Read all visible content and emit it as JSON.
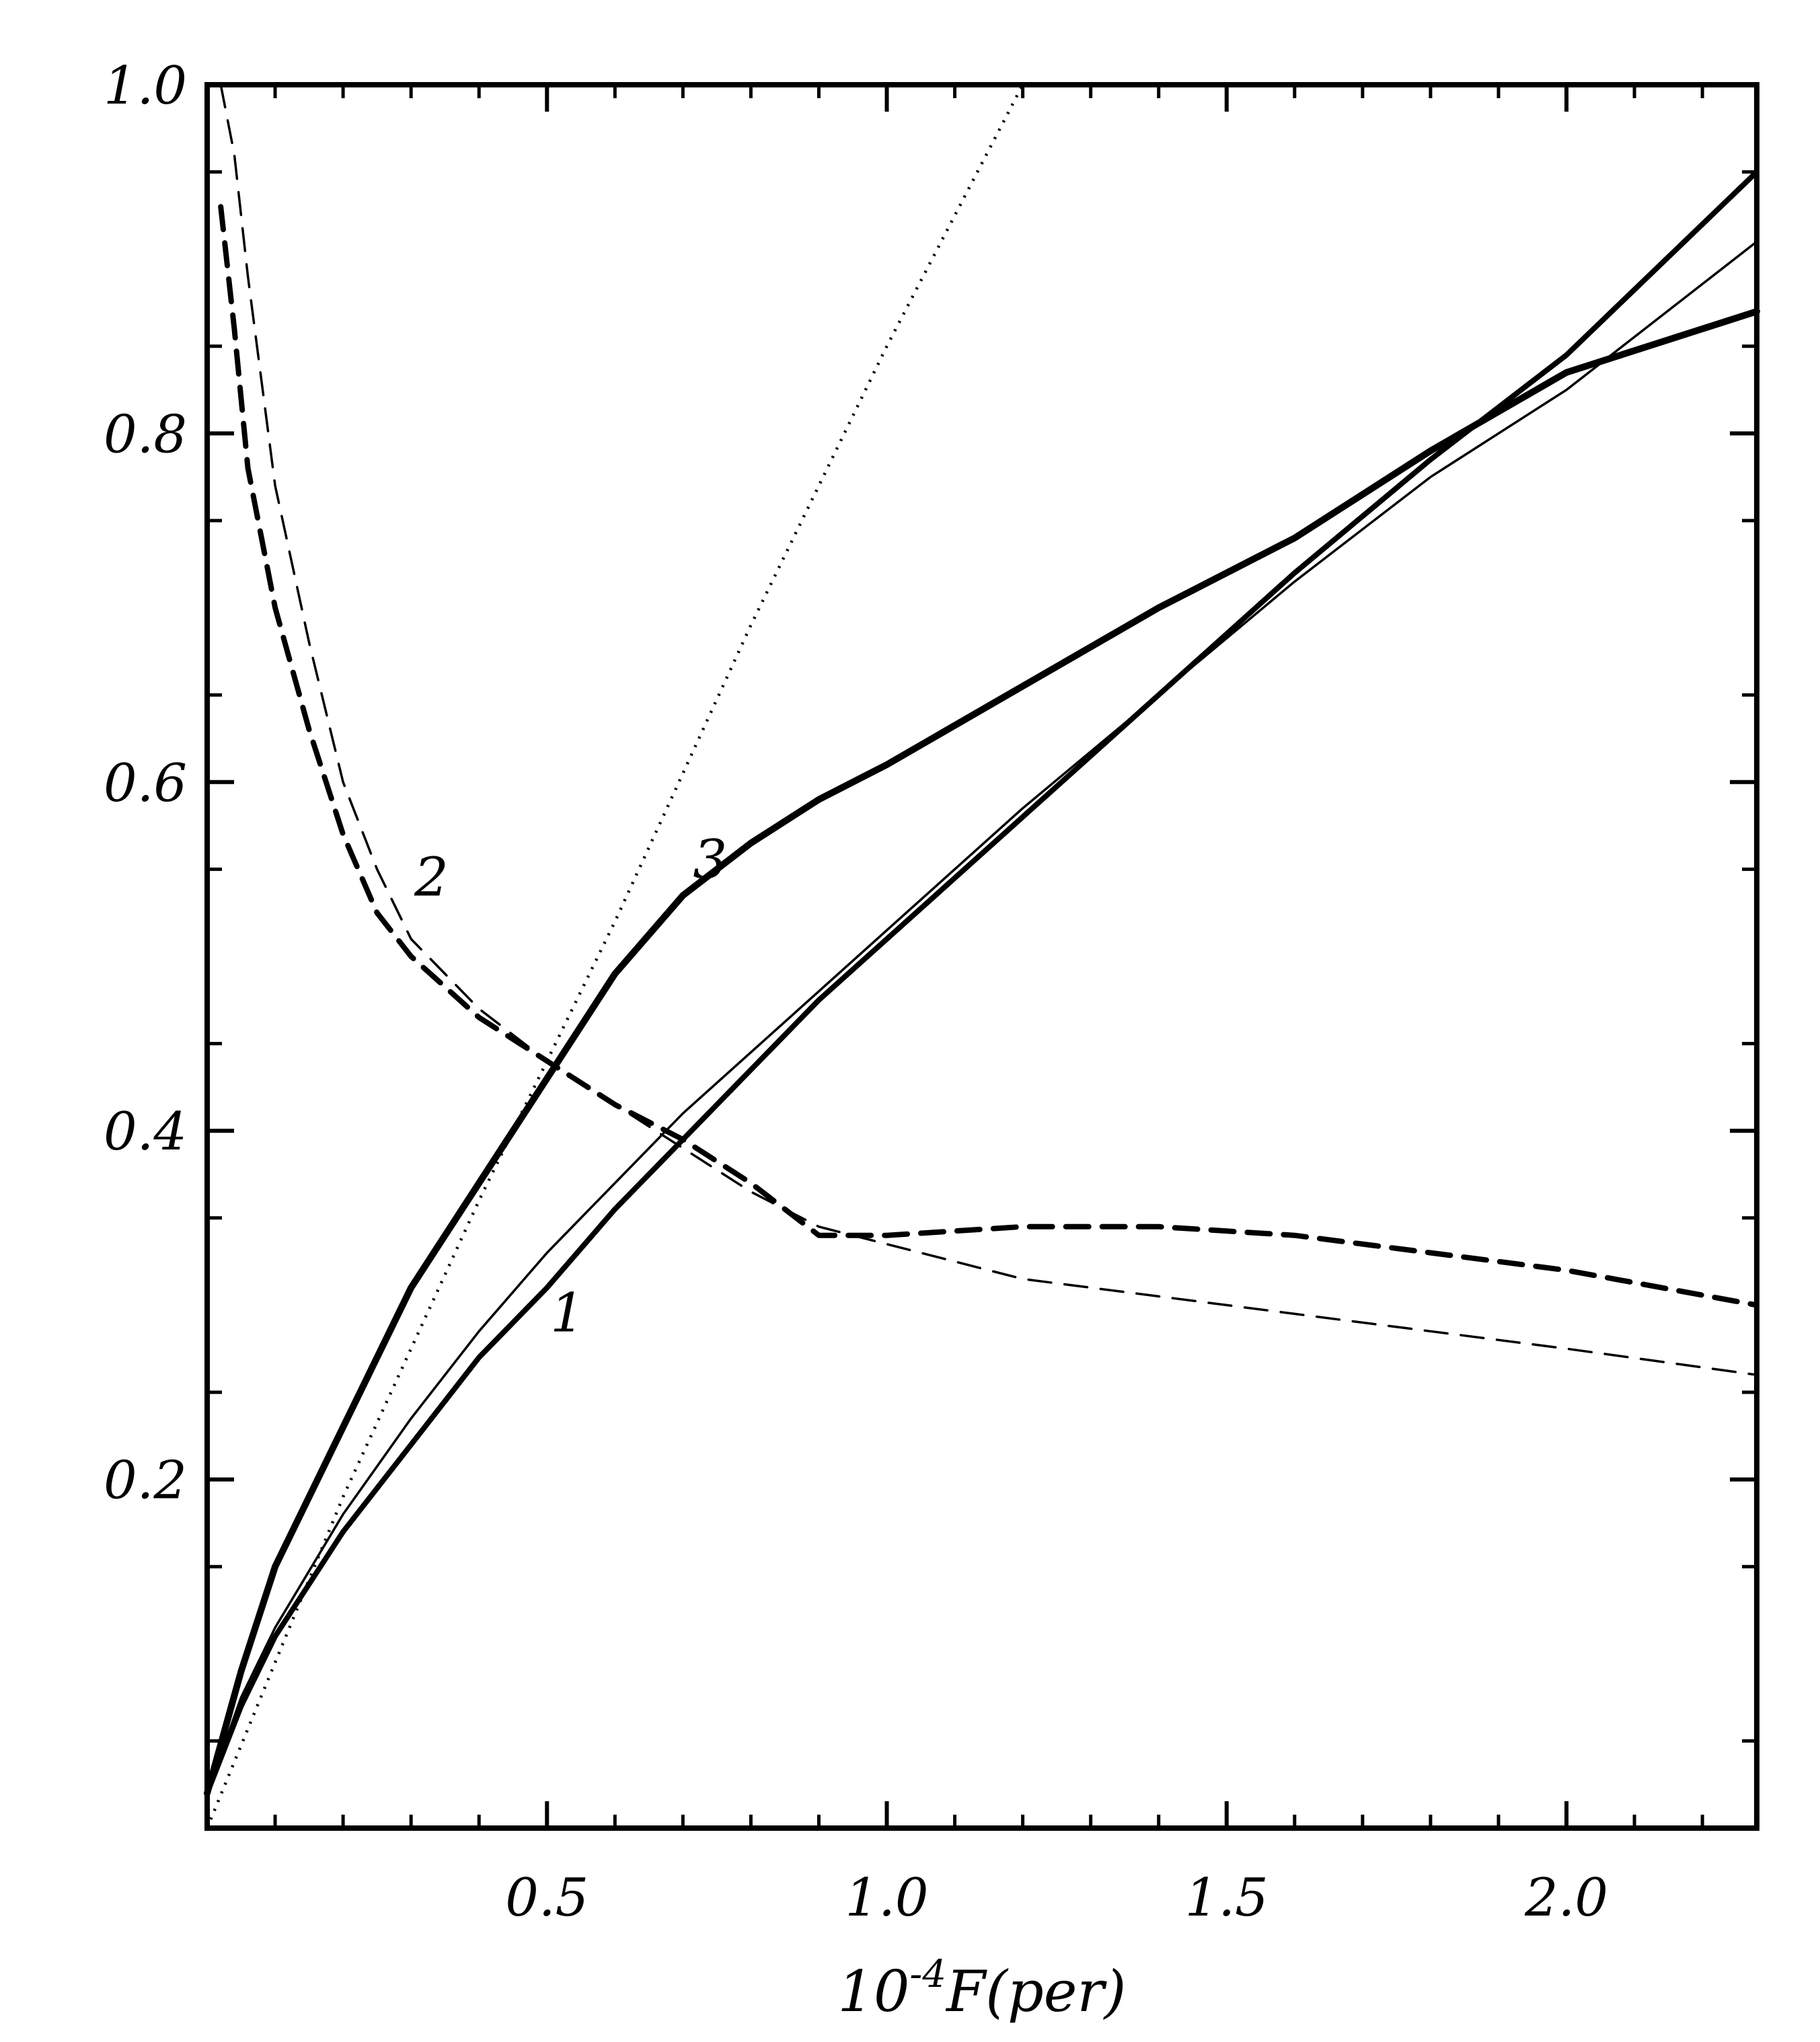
{
  "chart_data": {
    "type": "line",
    "xlabel": "10",
    "xlabel_exponent": "-4",
    "xlabel_suffix": "F(per)",
    "ylabel": "",
    "xlim": [
      0,
      2.28
    ],
    "ylim": [
      0,
      1.0
    ],
    "x_ticks": [
      {
        "value": 0.5,
        "label": "0.5"
      },
      {
        "value": 1.0,
        "label": "1.0"
      },
      {
        "value": 1.5,
        "label": "1.5"
      },
      {
        "value": 2.0,
        "label": "2.0"
      }
    ],
    "y_ticks": [
      {
        "value": 0.2,
        "label": "0.2"
      },
      {
        "value": 0.4,
        "label": "0.4"
      },
      {
        "value": 0.6,
        "label": "0.6"
      },
      {
        "value": 0.8,
        "label": "0.8"
      },
      {
        "value": 1.0,
        "label": "1.0"
      }
    ],
    "grid": false,
    "series": [
      {
        "style": "thick-solid",
        "x": [
          0.0,
          0.05,
          0.1,
          0.2,
          0.3,
          0.4,
          0.5,
          0.6,
          0.7,
          0.8,
          0.9,
          1.0,
          1.2,
          1.4,
          1.6,
          1.8,
          2.0,
          2.28
        ],
        "y": [
          0.02,
          0.07,
          0.11,
          0.17,
          0.22,
          0.27,
          0.31,
          0.355,
          0.395,
          0.435,
          0.475,
          0.51,
          0.58,
          0.65,
          0.72,
          0.785,
          0.845,
          0.95
        ]
      },
      {
        "style": "thin-solid",
        "x": [
          0.0,
          0.05,
          0.1,
          0.2,
          0.3,
          0.4,
          0.5,
          0.6,
          0.7,
          0.8,
          0.9,
          1.0,
          1.2,
          1.4,
          1.6,
          1.8,
          2.0,
          2.28
        ],
        "y": [
          0.02,
          0.075,
          0.115,
          0.18,
          0.235,
          0.285,
          0.33,
          0.37,
          0.41,
          0.445,
          0.48,
          0.515,
          0.585,
          0.65,
          0.715,
          0.775,
          0.825,
          0.91
        ]
      },
      {
        "style": "noisy-thick",
        "x": [
          0.0,
          0.05,
          0.1,
          0.2,
          0.3,
          0.4,
          0.5,
          0.6,
          0.7,
          0.8,
          0.9,
          1.0,
          1.2,
          1.4,
          1.6,
          1.8,
          2.0,
          2.2,
          2.28
        ],
        "y": [
          0.02,
          0.09,
          0.15,
          0.23,
          0.31,
          0.37,
          0.43,
          0.49,
          0.535,
          0.565,
          0.59,
          0.61,
          0.655,
          0.7,
          0.74,
          0.79,
          0.835,
          0.86,
          0.87
        ]
      },
      {
        "style": "thick-dashed",
        "x": [
          0.02,
          0.04,
          0.06,
          0.1,
          0.15,
          0.2,
          0.25,
          0.3,
          0.4,
          0.5,
          0.6,
          0.7,
          0.8,
          0.9,
          1.0,
          1.2,
          1.4,
          1.6,
          1.8,
          2.0,
          2.28
        ],
        "y": [
          0.93,
          0.86,
          0.78,
          0.7,
          0.63,
          0.57,
          0.525,
          0.5,
          0.465,
          0.44,
          0.415,
          0.395,
          0.37,
          0.34,
          0.34,
          0.345,
          0.345,
          0.34,
          0.33,
          0.32,
          0.3
        ]
      },
      {
        "style": "thin-dashed",
        "x": [
          0.02,
          0.04,
          0.06,
          0.1,
          0.15,
          0.2,
          0.25,
          0.3,
          0.4,
          0.5,
          0.6,
          0.7,
          0.8,
          0.9,
          1.0,
          1.2,
          1.4,
          1.6,
          1.8,
          2.0,
          2.28
        ],
        "y": [
          1.0,
          0.96,
          0.89,
          0.77,
          0.68,
          0.6,
          0.55,
          0.51,
          0.47,
          0.44,
          0.415,
          0.39,
          0.365,
          0.345,
          0.335,
          0.315,
          0.305,
          0.295,
          0.285,
          0.275,
          0.26
        ]
      },
      {
        "style": "dotted",
        "x": [
          0.0,
          0.2,
          0.4,
          0.6,
          0.8,
          1.0,
          1.2
        ],
        "y": [
          0.0,
          0.19,
          0.36,
          0.52,
          0.69,
          0.85,
          1.0
        ]
      }
    ],
    "annotations": [
      {
        "text": "1",
        "x": 0.53,
        "y": 0.285
      },
      {
        "text": "2",
        "x": 0.33,
        "y": 0.535
      },
      {
        "text": "3",
        "x": 0.74,
        "y": 0.545
      }
    ]
  }
}
